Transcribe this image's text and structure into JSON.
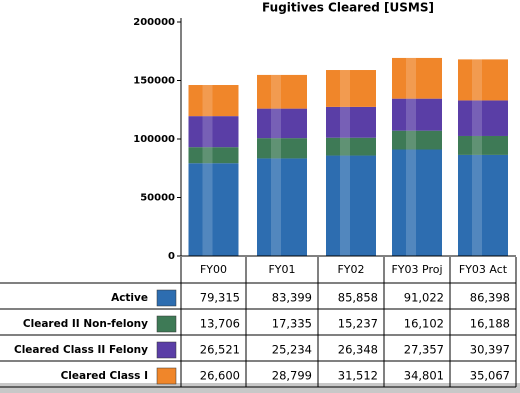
{
  "chart_data": {
    "type": "stacked-bar",
    "title": "Fugitives Cleared [USMS]",
    "categories": [
      "FY00",
      "FY01",
      "FY02",
      "FY03 Proj",
      "FY03 Act"
    ],
    "series": [
      {
        "name": "Active",
        "color": "#2d6db0",
        "values": [
          79315,
          83399,
          85858,
          91022,
          86398
        ],
        "value_labels": [
          "79,315",
          "83,399",
          "85,858",
          "91,022",
          "86,398"
        ]
      },
      {
        "name": "Cleared II Non-felony",
        "color": "#3e7a56",
        "values": [
          13706,
          17335,
          15237,
          16102,
          16188
        ],
        "value_labels": [
          "13,706",
          "17,335",
          "15,237",
          "16,102",
          "16,188"
        ]
      },
      {
        "name": "Cleared Class II Felony",
        "color": "#5a3ea6",
        "values": [
          26521,
          25234,
          26348,
          27357,
          30397
        ],
        "value_labels": [
          "26,521",
          "25,234",
          "26,348",
          "27,357",
          "30,397"
        ]
      },
      {
        "name": "Cleared Class I",
        "color": "#f0862a",
        "values": [
          26600,
          28799,
          31512,
          34801,
          35067
        ],
        "value_labels": [
          "26,600",
          "28,799",
          "31,512",
          "34,801",
          "35,067"
        ]
      }
    ],
    "ylim": [
      0,
      200000
    ],
    "yticks": [
      0,
      50000,
      100000,
      150000,
      200000
    ]
  }
}
